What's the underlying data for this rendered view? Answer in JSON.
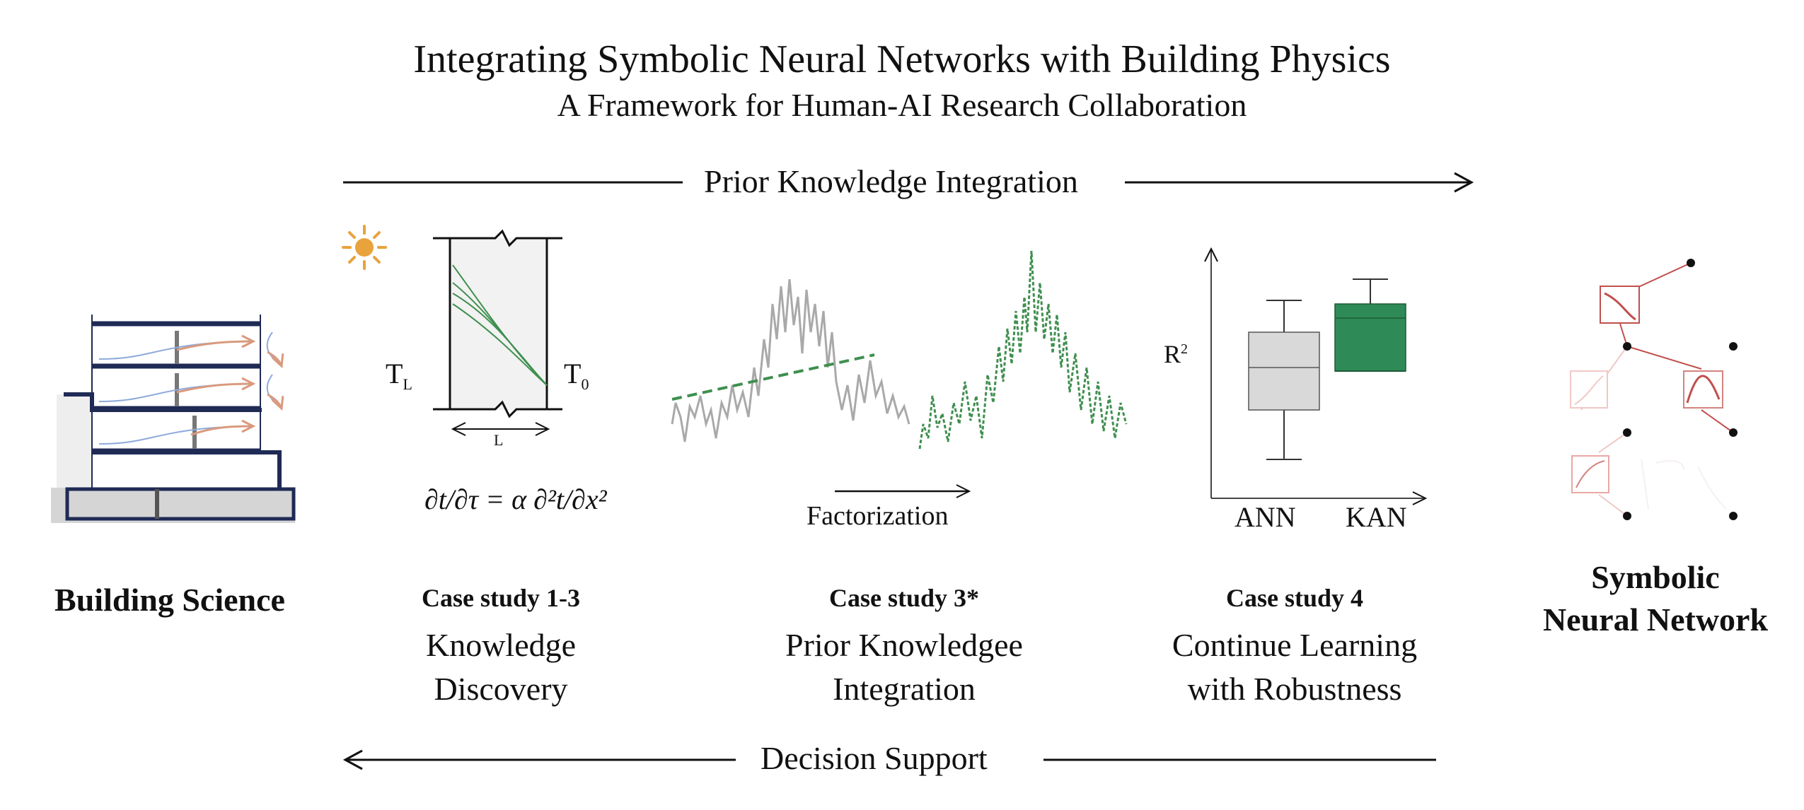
{
  "header": {
    "title": "Integrating Symbolic Neural Networks with Building Physics",
    "subtitle": "A Framework for Human-AI Research Collaboration"
  },
  "flows": {
    "top_label": "Prior Knowledge Integration",
    "bottom_label": "Decision Support",
    "factorization_label": "Factorization"
  },
  "left_node": {
    "label": "Building Science"
  },
  "right_node": {
    "label_line1": "Symbolic",
    "label_line2": "Neural Network"
  },
  "case_studies": [
    {
      "heading": "Case study 1-3",
      "line1": "Knowledge",
      "line2": "Discovery"
    },
    {
      "heading": "Case study 3*",
      "line1": "Prior Knowledgee",
      "line2": "Integration"
    },
    {
      "heading": "Case study 4",
      "line1": "Continue Learning",
      "line2": "with Robustness"
    }
  ],
  "heat_panel": {
    "left_temp_main": "T",
    "left_temp_sub": "L",
    "right_temp_main": "T",
    "right_temp_sub": "0",
    "length_label": "L",
    "equation": "∂t/∂τ = α ∂²t/∂x²",
    "sun_icon": "sun-icon"
  },
  "boxplot_panel": {
    "y_label": "R",
    "y_label_sup": "2",
    "categories": [
      "ANN",
      "KAN"
    ],
    "colors": {
      "ANN": "#d9d9d9",
      "KAN": "#2e8b57"
    }
  },
  "colors": {
    "building_outline": "#1f2a55",
    "flow_blue": "#8eaadb",
    "flow_orange": "#d99a7e",
    "sun": "#e8a33d",
    "green_line": "#3f8f4f",
    "gray_signal": "#a9a9a9",
    "network_red": "#c0504d"
  }
}
